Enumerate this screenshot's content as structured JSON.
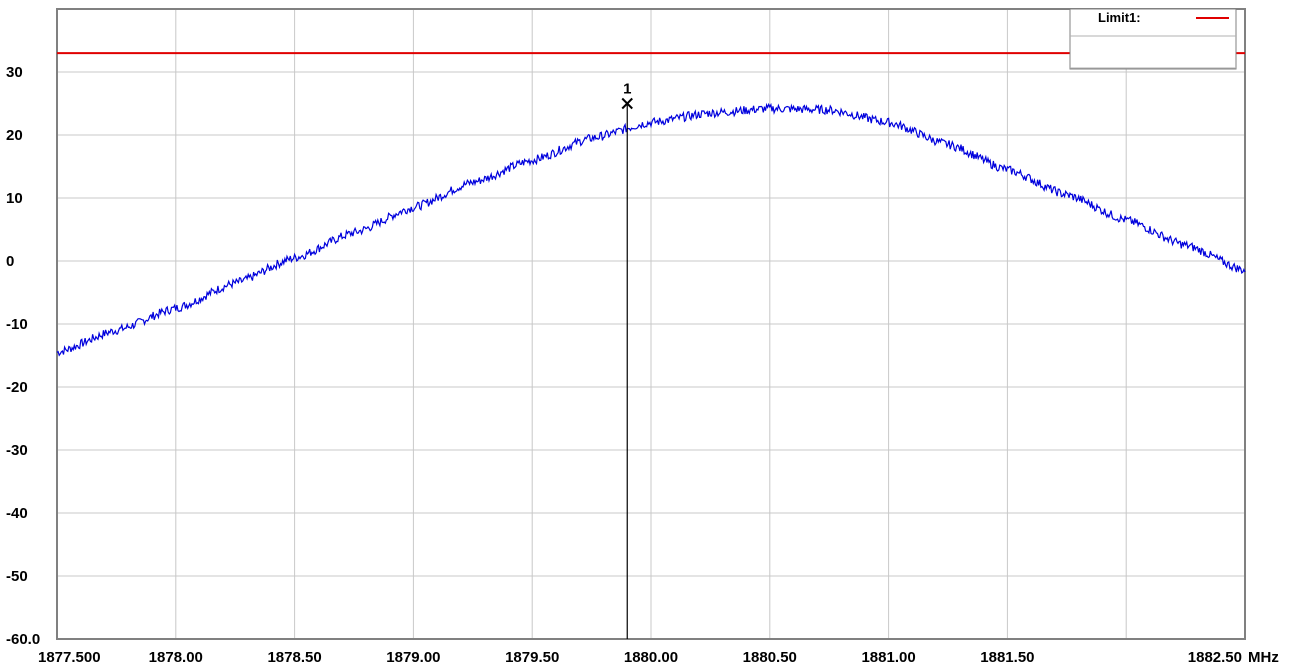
{
  "chart_data": {
    "type": "line",
    "x_unit": "MHz",
    "xlim": [
      1877.5,
      1882.5
    ],
    "ylim": [
      -60,
      40
    ],
    "x_ticks": [
      {
        "value": 1877.5,
        "label": "1877.500"
      },
      {
        "value": 1878.0,
        "label": "1878.00"
      },
      {
        "value": 1878.5,
        "label": "1878.50"
      },
      {
        "value": 1879.0,
        "label": "1879.00"
      },
      {
        "value": 1879.5,
        "label": "1879.50"
      },
      {
        "value": 1880.0,
        "label": "1880.00"
      },
      {
        "value": 1880.5,
        "label": "1880.50"
      },
      {
        "value": 1881.0,
        "label": "1881.00"
      },
      {
        "value": 1881.5,
        "label": "1881.50"
      },
      {
        "value": 1882.0,
        "label": ""
      },
      {
        "value": 1882.5,
        "label": "1882.50"
      }
    ],
    "y_ticks": [
      {
        "value": 30,
        "label": "30"
      },
      {
        "value": 20,
        "label": "20"
      },
      {
        "value": 10,
        "label": "10"
      },
      {
        "value": 0,
        "label": "0"
      },
      {
        "value": -10,
        "label": "-10"
      },
      {
        "value": -20,
        "label": "-20"
      },
      {
        "value": -30,
        "label": "-30"
      },
      {
        "value": -40,
        "label": "-40"
      },
      {
        "value": -50,
        "label": "-50"
      },
      {
        "value": -60,
        "label": "-60.0"
      }
    ],
    "grid": true,
    "legend": {
      "position": "top-right",
      "entries": [
        {
          "label": "Limit1:",
          "color": "#e00000"
        }
      ]
    },
    "limit_line": {
      "name": "Limit1:",
      "y": 33,
      "color": "#e00000"
    },
    "trace": {
      "color": "#0000dd",
      "points": [
        [
          1877.5,
          -14.5
        ],
        [
          1877.75,
          -11.0
        ],
        [
          1878.0,
          -7.5
        ],
        [
          1878.25,
          -3.5
        ],
        [
          1878.5,
          0.5
        ],
        [
          1878.75,
          4.5
        ],
        [
          1879.0,
          8.5
        ],
        [
          1879.25,
          12.5
        ],
        [
          1879.5,
          16.0
        ],
        [
          1879.75,
          19.5
        ],
        [
          1880.0,
          22.0
        ],
        [
          1880.25,
          23.5
        ],
        [
          1880.5,
          24.2
        ],
        [
          1880.75,
          24.0
        ],
        [
          1881.0,
          22.0
        ],
        [
          1881.25,
          18.5
        ],
        [
          1881.5,
          14.5
        ],
        [
          1881.75,
          10.5
        ],
        [
          1882.0,
          6.5
        ],
        [
          1882.25,
          2.5
        ],
        [
          1882.5,
          -1.5
        ]
      ]
    },
    "marker": {
      "label": "1",
      "x": 1879.9,
      "y": 25.0
    }
  },
  "icons": {
    "marker_symbol": "x-icon"
  }
}
